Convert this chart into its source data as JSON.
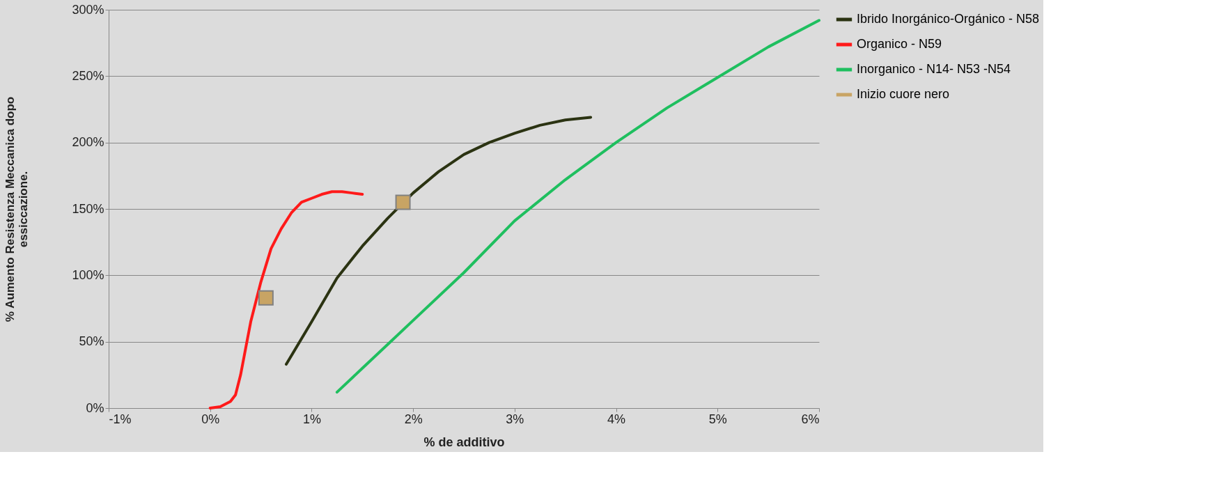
{
  "chart_data": {
    "type": "line",
    "xlabel": "% de additivo",
    "ylabel": "% Aumento Resistenza Meccanica dopo\nessiccazione.",
    "xlim": [
      -1,
      6
    ],
    "xticks": [
      {
        "value": -1,
        "label": "-1%"
      },
      {
        "value": 0,
        "label": "0%"
      },
      {
        "value": 1,
        "label": "1%"
      },
      {
        "value": 2,
        "label": "2%"
      },
      {
        "value": 3,
        "label": "3%"
      },
      {
        "value": 4,
        "label": "4%"
      },
      {
        "value": 5,
        "label": "5%"
      },
      {
        "value": 6,
        "label": "6%"
      }
    ],
    "ylim": [
      0,
      300
    ],
    "yticks": [
      {
        "value": 0,
        "label": "0%"
      },
      {
        "value": 50,
        "label": "50%"
      },
      {
        "value": 100,
        "label": "100%"
      },
      {
        "value": 150,
        "label": "150%"
      },
      {
        "value": 200,
        "label": "200%"
      },
      {
        "value": 250,
        "label": "250%"
      },
      {
        "value": 300,
        "label": "300%"
      }
    ],
    "grid": "y",
    "legend": "right",
    "marker": "none",
    "line_style": "solid",
    "series": [
      {
        "name": "Ibrido Inorgánico-Orgánico - N58",
        "color": "#2b3312",
        "x": [
          0.75,
          1.0,
          1.25,
          1.5,
          1.75,
          2.0,
          2.25,
          2.5,
          2.75,
          3.0,
          3.25,
          3.5,
          3.75
        ],
        "values": [
          33,
          65,
          98,
          122,
          143,
          162,
          178,
          191,
          200,
          207,
          213,
          217,
          219
        ]
      },
      {
        "name": "Organico - N59",
        "color": "#ff1a1a",
        "x": [
          0,
          0.1,
          0.2,
          0.25,
          0.3,
          0.35,
          0.4,
          0.5,
          0.6,
          0.7,
          0.8,
          0.9,
          1.0,
          1.1,
          1.2,
          1.3,
          1.4,
          1.5
        ],
        "values": [
          0,
          1,
          5,
          10,
          25,
          45,
          65,
          95,
          120,
          135,
          147,
          155,
          158,
          161,
          163,
          163,
          162,
          161
        ]
      },
      {
        "name": "Inorganico - N14- N53 -N54",
        "color": "#1fbf5f",
        "x": [
          1.25,
          1.5,
          1.75,
          2.0,
          2.5,
          3.0,
          3.5,
          4.0,
          4.5,
          5.0,
          5.5,
          6.0
        ],
        "values": [
          12,
          30,
          48,
          66,
          102,
          141,
          172,
          200,
          226,
          249,
          272,
          292
        ]
      },
      {
        "name": "Inizio cuore nero",
        "type": "scatter",
        "marker": "square",
        "color": "#c8a464",
        "x": [
          0.55,
          1.9
        ],
        "values": [
          83,
          155
        ]
      }
    ]
  }
}
